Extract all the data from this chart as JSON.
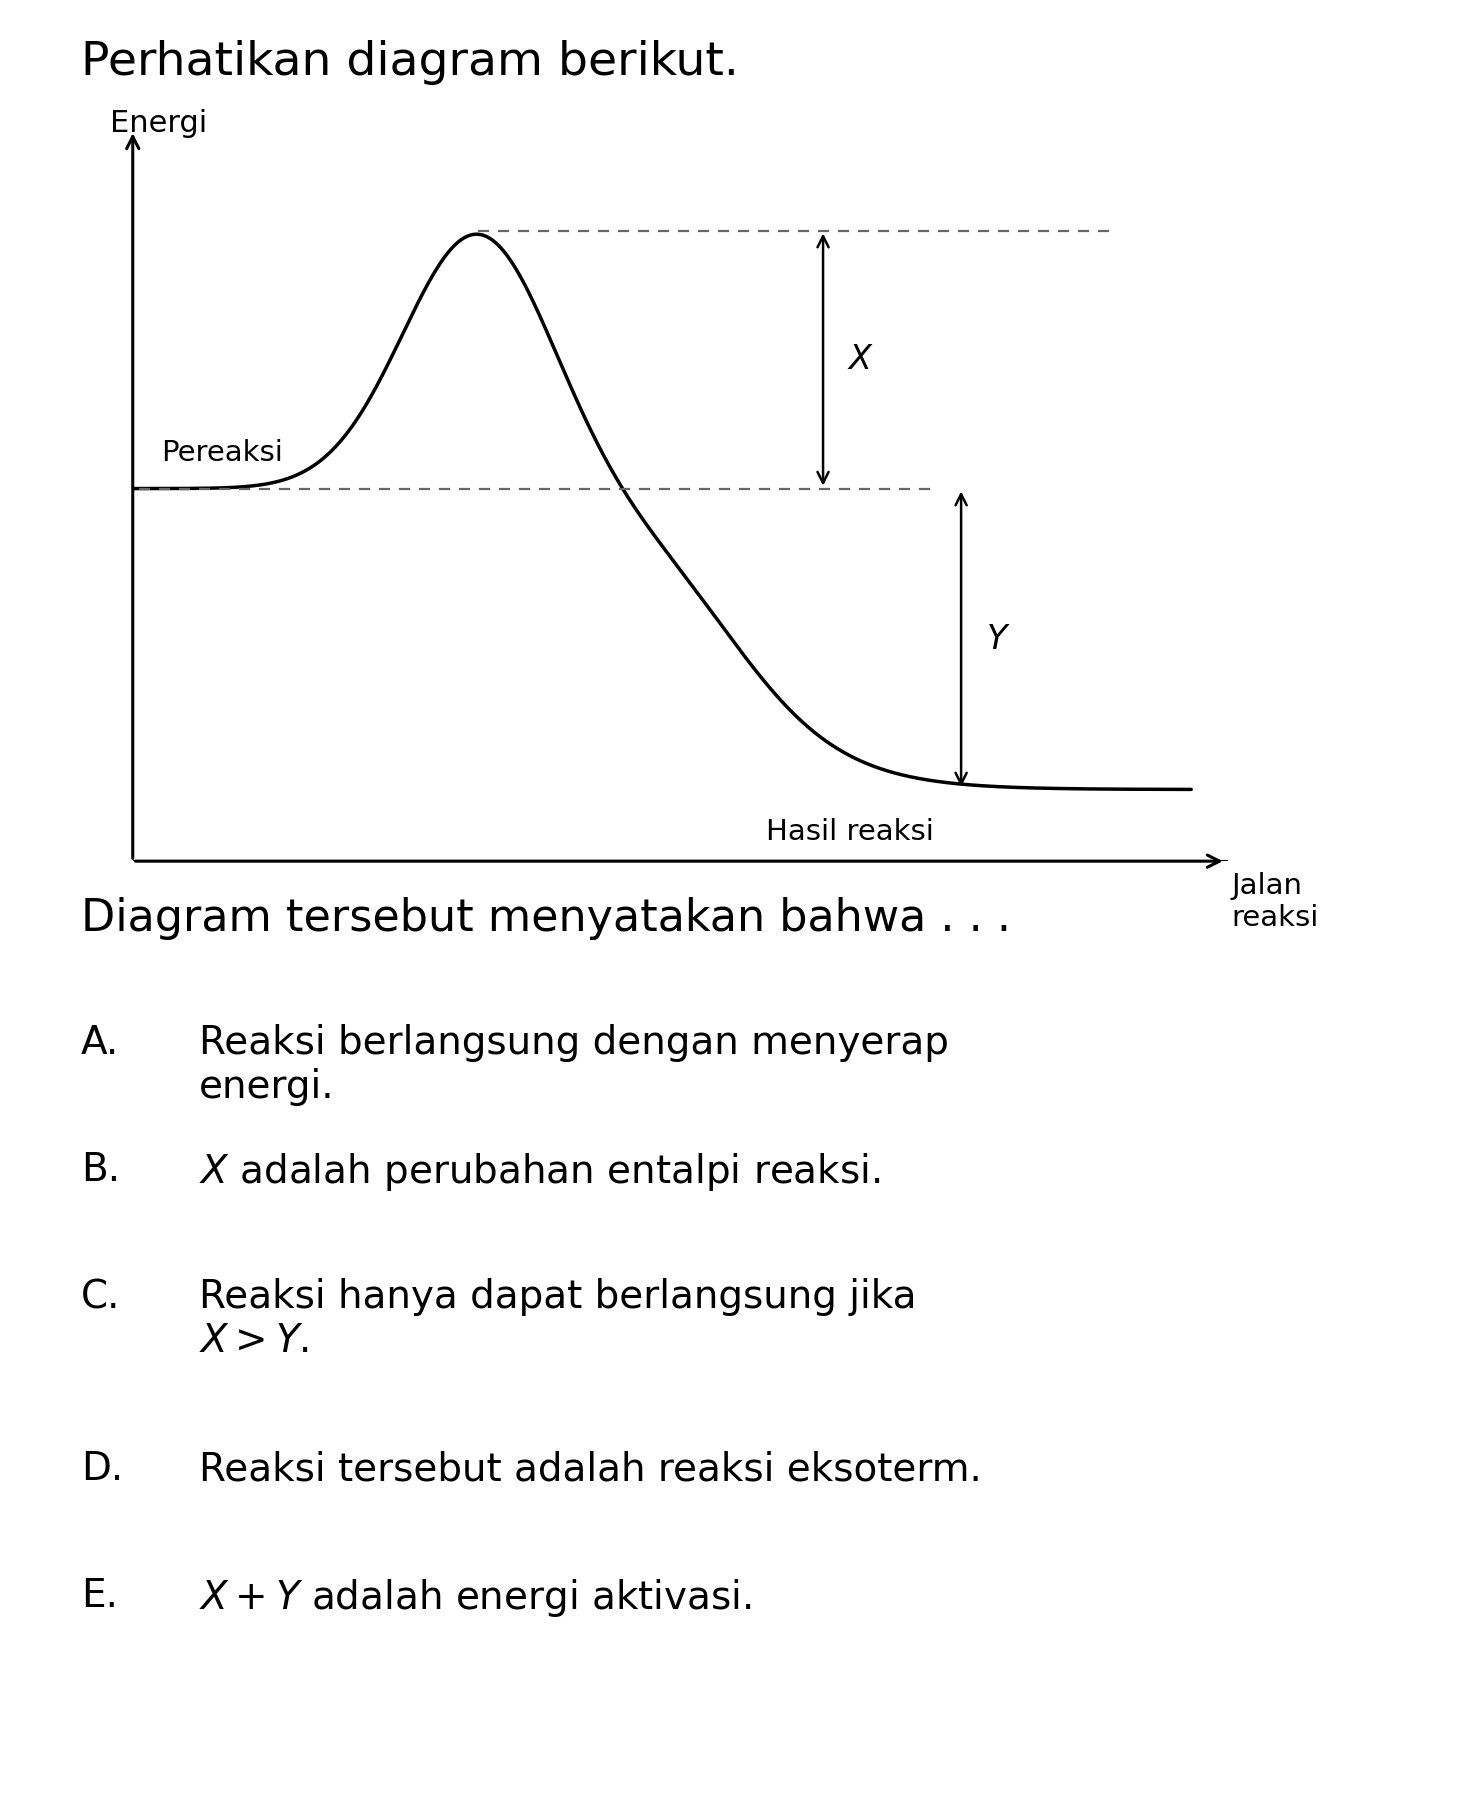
{
  "title": "Perhatikan diagram berikut.",
  "ylabel": "Energi",
  "xlabel_jalan": "Jalan\nreaksi",
  "label_pereaksi": "Pereaksi",
  "label_hasil": "Hasil reaksi",
  "label_X": "X",
  "label_Y": "Y",
  "question": "Diagram tersebut menyatakan bahwa . . .",
  "options": [
    {
      "letter": "A.",
      "text": "Reaksi berlangsung dengan menyerap\nenergi."
    },
    {
      "letter": "B.",
      "text": "$X$ adalah perubahan entalpi reaksi."
    },
    {
      "letter": "C.",
      "text": "Reaksi hanya dapat berlangsung jika\n$X > Y.$"
    },
    {
      "letter": "D.",
      "text": "Reaksi tersebut adalah reaksi eksoterm."
    },
    {
      "letter": "E.",
      "text": "$X + Y$ adalah energi aktivasi."
    }
  ],
  "reactant_level": 0.52,
  "product_level": 0.1,
  "peak_level": 0.88,
  "background_color": "#ffffff",
  "line_color": "#000000",
  "dashed_color": "#666666",
  "font_color": "#000000",
  "title_fontsize": 34,
  "label_fontsize": 22,
  "question_fontsize": 32,
  "option_letter_fontsize": 28,
  "option_text_fontsize": 28
}
